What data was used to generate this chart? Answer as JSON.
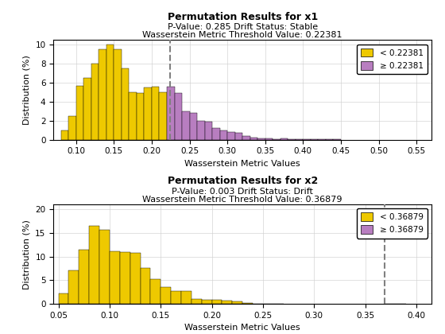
{
  "ax1": {
    "title": "Permutation Results for x1",
    "subtitle1": "P-Value: 0.285 Drift Status: Stable",
    "subtitle2": "Wasserstein Metric Threshold Value: 0.22381",
    "xlabel": "Wasserstein Metric Values",
    "ylabel": "Distribution (%)",
    "threshold": 0.22381,
    "xlim": [
      0.07,
      0.57
    ],
    "ylim": [
      0,
      10.5
    ],
    "yticks": [
      0,
      2,
      4,
      6,
      8,
      10
    ],
    "xticks": [
      0.1,
      0.15,
      0.2,
      0.25,
      0.3,
      0.35,
      0.4,
      0.45,
      0.5,
      0.55
    ],
    "color_below": "#EEC900",
    "color_above": "#B87EC0",
    "legend_below": "< 0.22381",
    "legend_above": "≥ 0.22381",
    "bins_left": [
      0.08,
      0.09,
      0.1,
      0.11,
      0.12,
      0.13,
      0.14,
      0.15,
      0.16,
      0.17,
      0.18,
      0.19,
      0.2,
      0.21,
      0.22,
      0.23,
      0.24,
      0.25,
      0.26,
      0.27,
      0.28,
      0.29,
      0.3,
      0.31,
      0.32,
      0.33,
      0.34,
      0.35,
      0.36,
      0.37,
      0.38,
      0.39,
      0.4,
      0.41,
      0.42,
      0.43,
      0.44,
      0.45,
      0.46,
      0.47,
      0.48,
      0.49,
      0.5,
      0.51,
      0.52,
      0.53,
      0.54
    ],
    "bin_heights": [
      1.0,
      2.5,
      5.7,
      6.5,
      8.0,
      9.5,
      10.0,
      9.5,
      7.5,
      5.0,
      4.9,
      5.5,
      5.6,
      5.0,
      5.6,
      4.9,
      3.0,
      2.8,
      2.0,
      1.9,
      1.2,
      1.0,
      0.8,
      0.7,
      0.4,
      0.2,
      0.15,
      0.1,
      0.05,
      0.1,
      0.05,
      0.05,
      0.02,
      0.02,
      0.01,
      0.01,
      0.01,
      0.0,
      0.0,
      0.0,
      0.0,
      0.0,
      0.0,
      0.0,
      0.0,
      0.0,
      0.0
    ],
    "bin_width": 0.01
  },
  "ax2": {
    "title": "Permutation Results for x2",
    "subtitle1": "P-Value: 0.003 Drift Status: Drift",
    "subtitle2": "Wasserstein Metric Threshold Value: 0.36879",
    "xlabel": "Wasserstein Metric Values",
    "ylabel": "Distribution (%)",
    "threshold": 0.36879,
    "xlim": [
      0.045,
      0.415
    ],
    "ylim": [
      0,
      21
    ],
    "yticks": [
      0,
      5,
      10,
      15,
      20
    ],
    "xticks": [
      0.05,
      0.1,
      0.15,
      0.2,
      0.25,
      0.3,
      0.35,
      0.4
    ],
    "color_below": "#EEC900",
    "color_above": "#B87EC0",
    "legend_below": "< 0.36879",
    "legend_above": "≥ 0.36879",
    "bins_left": [
      0.05,
      0.06,
      0.07,
      0.08,
      0.09,
      0.1,
      0.11,
      0.12,
      0.13,
      0.14,
      0.15,
      0.16,
      0.17,
      0.18,
      0.19,
      0.2,
      0.21,
      0.22,
      0.23,
      0.24,
      0.25,
      0.26,
      0.27,
      0.28,
      0.29,
      0.3,
      0.31,
      0.32,
      0.33,
      0.34,
      0.35,
      0.36,
      0.37,
      0.38,
      0.39,
      0.4
    ],
    "bin_heights": [
      2.2,
      7.1,
      11.4,
      16.5,
      15.7,
      11.1,
      11.0,
      10.8,
      7.6,
      5.2,
      3.5,
      2.8,
      2.75,
      1.1,
      0.85,
      0.85,
      0.75,
      0.5,
      0.15,
      0.1,
      0.05,
      0.02,
      0.0,
      0.0,
      0.0,
      0.0,
      0.0,
      0.0,
      0.0,
      0.0,
      0.0,
      0.0,
      0.05,
      0.1,
      0.0,
      0.0
    ],
    "bin_width": 0.01
  },
  "background_color": "#ffffff",
  "grid_color": "#d0d0d0",
  "dashed_line_color": "#808080"
}
